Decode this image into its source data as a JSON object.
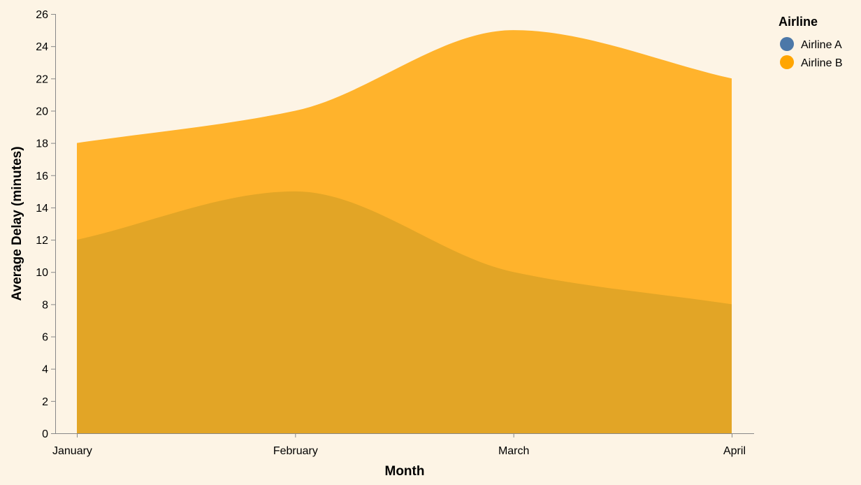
{
  "chart_data": {
    "type": "area",
    "xlabel": "Month",
    "ylabel": "Average Delay (minutes)",
    "categories": [
      "January",
      "February",
      "March",
      "April"
    ],
    "ylim": [
      0,
      26
    ],
    "y_ticks": [
      0,
      2,
      4,
      6,
      8,
      10,
      12,
      14,
      16,
      18,
      20,
      22,
      24,
      26
    ],
    "grid": false,
    "legend": {
      "title": "Airline",
      "placement": "top-right"
    },
    "series": [
      {
        "name": "Airline A",
        "values": [
          12,
          15,
          10,
          8
        ],
        "color": "#4c78a8"
      },
      {
        "name": "Airline B",
        "values": [
          18,
          20,
          25,
          22
        ],
        "color": "#ffa500"
      }
    ],
    "area_colors": {
      "overlap": "#e2a526",
      "upper": "#ffb32c"
    },
    "background": "#fdf4e5"
  }
}
